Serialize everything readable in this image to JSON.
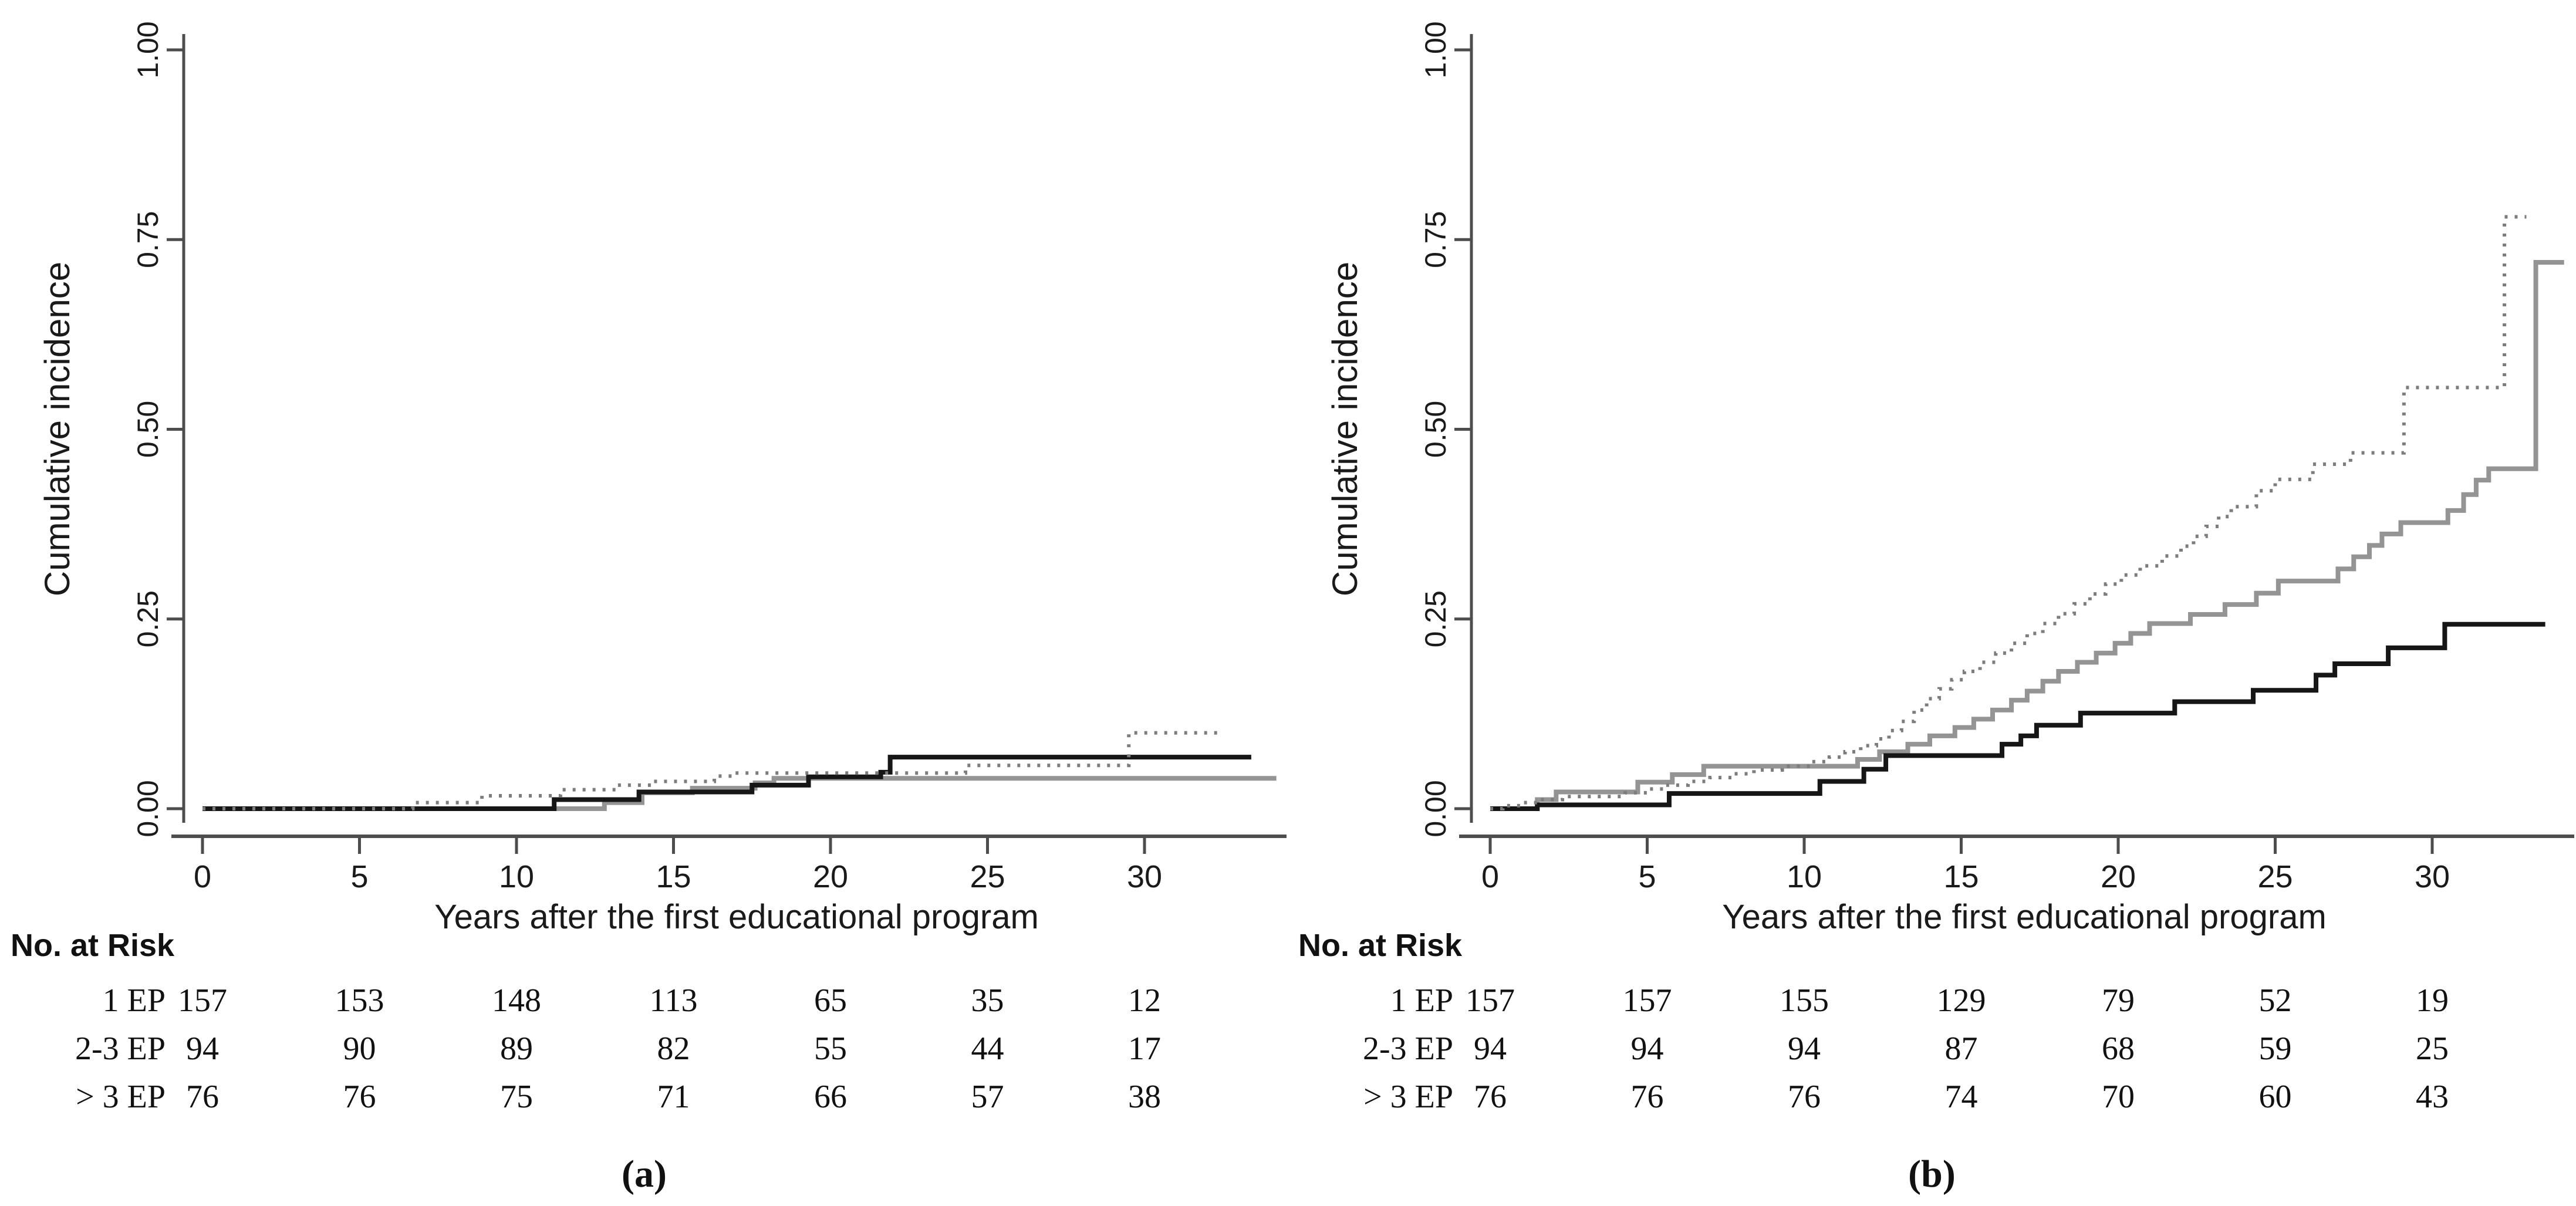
{
  "figure": {
    "background": "#ffffff",
    "text_color": "#1a1a1a",
    "axis_color": "#4d4d4d",
    "styles": {
      "solid_gray": {
        "color": "#949494",
        "width": 8,
        "dash": ""
      },
      "solid_black": {
        "color": "#161616",
        "width": 8,
        "dash": ""
      },
      "dotted_gray": {
        "color": "#7d7d7d",
        "width": 6,
        "dash": "5 12"
      }
    }
  },
  "chart_data": [
    {
      "panel": "a",
      "type": "line",
      "subtype": "step-cumulative-incidence",
      "xlabel": "Years after the first educational program",
      "ylabel": "Cumulative incidence",
      "xlim": [
        0,
        34.6
      ],
      "ylim": [
        0,
        1
      ],
      "grid": false,
      "legend": "none",
      "x_ticks": [
        0,
        5,
        10,
        15,
        20,
        25,
        30
      ],
      "y_ticks": [
        {
          "value": 1.0,
          "label": "1.00"
        },
        {
          "value": 0.75,
          "label": "0.75"
        },
        {
          "value": 0.5,
          "label": "0.50"
        },
        {
          "value": 0.25,
          "label": "0.25"
        },
        {
          "value": 0.0,
          "label": "0.00"
        }
      ],
      "series": [
        {
          "name": "solid-gray-curve",
          "style": "solid_gray",
          "end_x": 34.2,
          "points": [
            [
              0,
              0
            ],
            [
              12.8,
              0.008
            ],
            [
              14,
              0.021
            ],
            [
              15.6,
              0.027
            ],
            [
              17.6,
              0.034
            ],
            [
              18.2,
              0.04
            ]
          ]
        },
        {
          "name": "solid-black-curve",
          "style": "solid_black",
          "end_x": 33.4,
          "points": [
            [
              0,
              0
            ],
            [
              11.2,
              0.012
            ],
            [
              13.9,
              0.022
            ],
            [
              17.5,
              0.031
            ],
            [
              19.3,
              0.042
            ],
            [
              21.6,
              0.048
            ],
            [
              21.9,
              0.068
            ]
          ]
        },
        {
          "name": "dotted-curve",
          "style": "dotted_gray",
          "end_x": 32.4,
          "points": [
            [
              0,
              0
            ],
            [
              6.7,
              0.008
            ],
            [
              8.9,
              0.017
            ],
            [
              11.4,
              0.025
            ],
            [
              13.2,
              0.031
            ],
            [
              14.3,
              0.036
            ],
            [
              16.3,
              0.043
            ],
            [
              16.9,
              0.047
            ],
            [
              24.3,
              0.057
            ],
            [
              29.5,
              0.1
            ]
          ]
        }
      ],
      "risk_table": {
        "title": "No. at Risk",
        "time_points": [
          0,
          5,
          10,
          15,
          20,
          25,
          30
        ],
        "rows": [
          {
            "label": "1 EP",
            "values": [
              "157",
              "153",
              "148",
              "113",
              "65",
              "35",
              "12"
            ]
          },
          {
            "label": "2-3 EP",
            "values": [
              "94",
              "90",
              "89",
              "82",
              "55",
              "44",
              "17"
            ]
          },
          {
            "label": "> 3 EP",
            "values": [
              "76",
              "76",
              "75",
              "71",
              "66",
              "57",
              "38"
            ]
          }
        ]
      },
      "caption": "(a)"
    },
    {
      "panel": "b",
      "type": "line",
      "subtype": "step-cumulative-incidence",
      "xlabel": "Years after the first educational program",
      "ylabel": "Cumulative incidence",
      "xlim": [
        0,
        34.6
      ],
      "ylim": [
        0,
        1
      ],
      "grid": false,
      "legend": "none",
      "x_ticks": [
        0,
        5,
        10,
        15,
        20,
        25,
        30
      ],
      "y_ticks": [
        {
          "value": 1.0,
          "label": "1.00"
        },
        {
          "value": 0.75,
          "label": "0.75"
        },
        {
          "value": 0.5,
          "label": "0.50"
        },
        {
          "value": 0.25,
          "label": "0.25"
        },
        {
          "value": 0.0,
          "label": "0.00"
        }
      ],
      "series": [
        {
          "name": "solid-gray-curve",
          "style": "solid_gray",
          "end_x": 34.2,
          "points": [
            [
              0,
              0
            ],
            [
              1.5,
              0.012
            ],
            [
              2.1,
              0.022
            ],
            [
              4.7,
              0.035
            ],
            [
              5.8,
              0.045
            ],
            [
              6.8,
              0.056
            ],
            [
              11.7,
              0.065
            ],
            [
              12.4,
              0.075
            ],
            [
              13.3,
              0.085
            ],
            [
              14,
              0.096
            ],
            [
              14.8,
              0.107
            ],
            [
              15.4,
              0.118
            ],
            [
              16,
              0.13
            ],
            [
              16.6,
              0.143
            ],
            [
              17.1,
              0.155
            ],
            [
              17.6,
              0.168
            ],
            [
              18.1,
              0.181
            ],
            [
              18.7,
              0.193
            ],
            [
              19.3,
              0.205
            ],
            [
              19.9,
              0.218
            ],
            [
              20.4,
              0.231
            ],
            [
              21,
              0.244
            ],
            [
              22.3,
              0.256
            ],
            [
              23.4,
              0.269
            ],
            [
              24.4,
              0.284
            ],
            [
              25.1,
              0.3
            ],
            [
              27,
              0.316
            ],
            [
              27.5,
              0.332
            ],
            [
              28,
              0.347
            ],
            [
              28.4,
              0.362
            ],
            [
              29,
              0.377
            ],
            [
              30.5,
              0.393
            ],
            [
              31,
              0.414
            ],
            [
              31.4,
              0.433
            ],
            [
              31.8,
              0.448
            ],
            [
              33.3,
              0.72
            ]
          ]
        },
        {
          "name": "solid-black-curve",
          "style": "solid_black",
          "end_x": 33.6,
          "points": [
            [
              0,
              0
            ],
            [
              1.5,
              0.005
            ],
            [
              5.7,
              0.02
            ],
            [
              10.5,
              0.036
            ],
            [
              11.9,
              0.052
            ],
            [
              12.6,
              0.07
            ],
            [
              16.3,
              0.085
            ],
            [
              16.9,
              0.096
            ],
            [
              17.4,
              0.11
            ],
            [
              18.8,
              0.126
            ],
            [
              21.8,
              0.141
            ],
            [
              24.3,
              0.156
            ],
            [
              26.3,
              0.176
            ],
            [
              26.9,
              0.191
            ],
            [
              28.6,
              0.212
            ],
            [
              30.4,
              0.243
            ]
          ]
        },
        {
          "name": "dotted-curve",
          "style": "dotted_gray",
          "end_x": 33.0,
          "points": [
            [
              0,
              0
            ],
            [
              0.4,
              0.004
            ],
            [
              1,
              0.008
            ],
            [
              1.6,
              0.012
            ],
            [
              2.3,
              0.016
            ],
            [
              4.3,
              0.021
            ],
            [
              5,
              0.026
            ],
            [
              5.6,
              0.031
            ],
            [
              6.3,
              0.036
            ],
            [
              7,
              0.041
            ],
            [
              7.7,
              0.046
            ],
            [
              8.4,
              0.051
            ],
            [
              9.3,
              0.056
            ],
            [
              10.2,
              0.062
            ],
            [
              10.8,
              0.068
            ],
            [
              11.3,
              0.075
            ],
            [
              11.8,
              0.083
            ],
            [
              12.3,
              0.092
            ],
            [
              12.7,
              0.103
            ],
            [
              13.1,
              0.115
            ],
            [
              13.5,
              0.13
            ],
            [
              13.9,
              0.145
            ],
            [
              14.3,
              0.158
            ],
            [
              14.7,
              0.17
            ],
            [
              15.1,
              0.181
            ],
            [
              15.6,
              0.193
            ],
            [
              16.1,
              0.205
            ],
            [
              16.6,
              0.218
            ],
            [
              17.1,
              0.231
            ],
            [
              17.6,
              0.244
            ],
            [
              18.1,
              0.257
            ],
            [
              18.6,
              0.27
            ],
            [
              19.1,
              0.283
            ],
            [
              19.6,
              0.296
            ],
            [
              20.1,
              0.308
            ],
            [
              20.7,
              0.32
            ],
            [
              21.4,
              0.333
            ],
            [
              22,
              0.346
            ],
            [
              22.4,
              0.359
            ],
            [
              22.8,
              0.372
            ],
            [
              23.2,
              0.385
            ],
            [
              23.6,
              0.398
            ],
            [
              24.4,
              0.419
            ],
            [
              25,
              0.434
            ],
            [
              26.2,
              0.454
            ],
            [
              27.4,
              0.469
            ],
            [
              29.1,
              0.555
            ],
            [
              32.3,
              0.78
            ]
          ]
        }
      ],
      "risk_table": {
        "title": "No. at Risk",
        "time_points": [
          0,
          5,
          10,
          15,
          20,
          25,
          30
        ],
        "rows": [
          {
            "label": "1 EP",
            "values": [
              "157",
              "157",
              "155",
              "129",
              "79",
              "52",
              "19"
            ]
          },
          {
            "label": "2-3 EP",
            "values": [
              "94",
              "94",
              "94",
              "87",
              "68",
              "59",
              "25"
            ]
          },
          {
            "label": "> 3 EP",
            "values": [
              "76",
              "76",
              "76",
              "74",
              "70",
              "60",
              "43"
            ]
          }
        ]
      },
      "caption": "(b)"
    }
  ]
}
